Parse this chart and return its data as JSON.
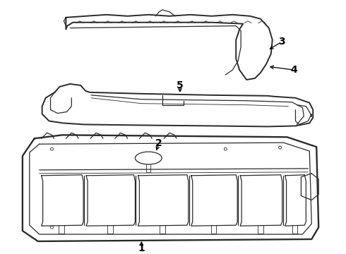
{
  "bg_color": "#ffffff",
  "line_color": "#2a2a2a",
  "lw_thick": 1.4,
  "lw_mid": 0.9,
  "lw_thin": 0.6,
  "fig_width": 4.9,
  "fig_height": 3.6,
  "dpi": 100,
  "label_fontsize": 10,
  "label_bold": true
}
